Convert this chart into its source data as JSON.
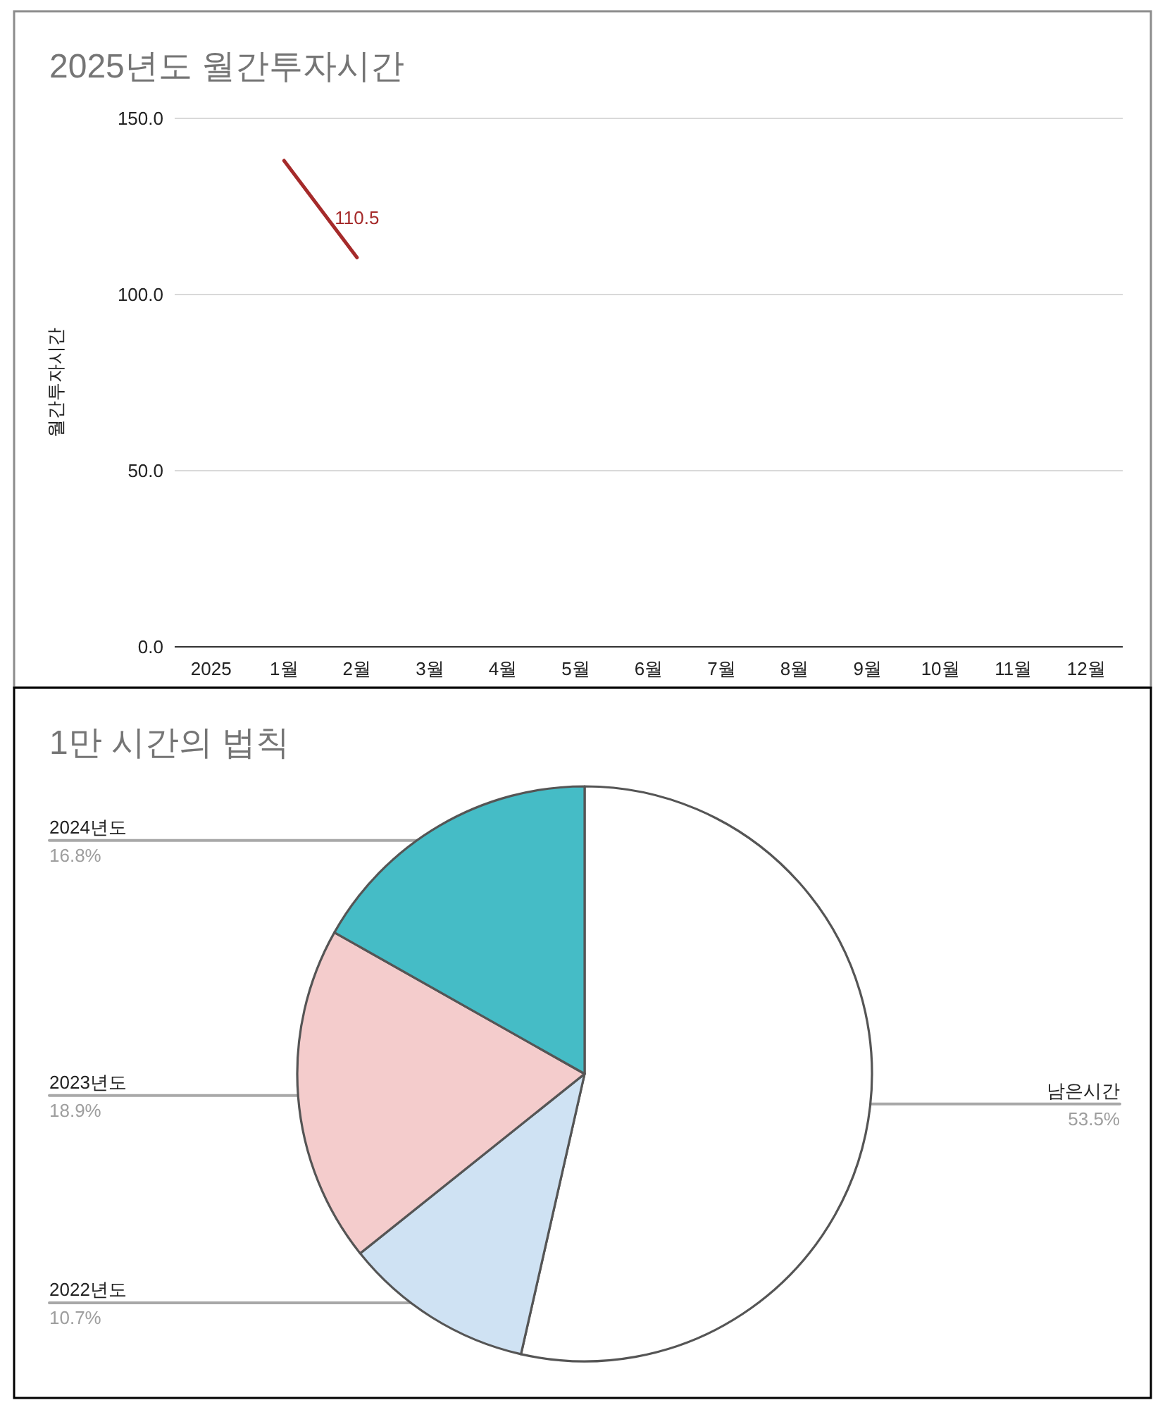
{
  "chart_data": [
    {
      "type": "line",
      "title": "2025년도 월간투자시간",
      "ylabel": "월간투자시간",
      "categories": [
        "2025",
        "1월",
        "2월",
        "3월",
        "4월",
        "5월",
        "6월",
        "7월",
        "8월",
        "9월",
        "10월",
        "11월",
        "12월"
      ],
      "series": [
        {
          "color": "#a52a2a",
          "values": [
            null,
            138,
            110.5,
            null,
            null,
            null,
            null,
            null,
            null,
            null,
            null,
            null,
            null
          ],
          "value_labels": [
            null,
            null,
            "110.5",
            null,
            null,
            null,
            null,
            null,
            null,
            null,
            null,
            null,
            null
          ]
        }
      ],
      "ylim": [
        0,
        150
      ],
      "yticks": [
        {
          "value": 0,
          "label": "0.0"
        },
        {
          "value": 50,
          "label": "50.0"
        },
        {
          "value": 100,
          "label": "100.0"
        },
        {
          "value": 150,
          "label": "150.0"
        }
      ],
      "grid": "y"
    },
    {
      "type": "pie",
      "title": "1만 시간의 법칙",
      "categories": [
        "남은시간",
        "2022년도",
        "2023년도",
        "2024년도"
      ],
      "values": [
        53.5,
        10.7,
        18.9,
        16.8
      ],
      "colors": [
        "#ffffff",
        "#cfe2f3",
        "#f4cccc",
        "#45bcc6"
      ],
      "value_labels": [
        "53.5%",
        "10.7%",
        "18.9%",
        "16.8%"
      ]
    }
  ]
}
